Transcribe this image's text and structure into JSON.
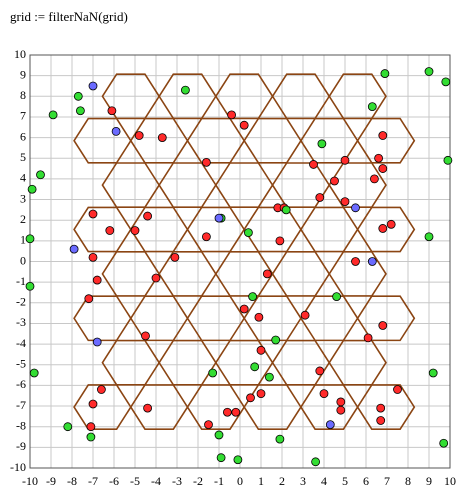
{
  "chart_data": {
    "type": "scatter",
    "title": "grid := filterNaN(grid)",
    "xlim": [
      -10,
      10
    ],
    "ylim": [
      -10,
      10
    ],
    "xticks": [
      -10,
      -9,
      -8,
      -7,
      -6,
      -5,
      -4,
      -3,
      -2,
      -1,
      0,
      1,
      2,
      3,
      4,
      5,
      6,
      7,
      8,
      9,
      10
    ],
    "yticks": [
      -10,
      -9,
      -8,
      -7,
      -6,
      -5,
      -4,
      -3,
      -2,
      -1,
      0,
      1,
      2,
      3,
      4,
      5,
      6,
      7,
      8,
      9,
      10
    ],
    "grid": true,
    "hex_color": "#8b4513",
    "hex_size": [
      1.35,
      1.07
    ],
    "hexagons": [
      {
        "y": 8.0,
        "x": [
          -5.2,
          -2.5,
          0.2,
          2.9,
          5.6
        ]
      },
      {
        "y": 5.85,
        "x": [
          -6.55,
          -3.85,
          -1.15,
          1.55,
          4.25,
          6.95
        ]
      },
      {
        "y": 3.7,
        "x": [
          -5.2,
          -2.5,
          0.2,
          2.9,
          5.6
        ]
      },
      {
        "y": 1.55,
        "x": [
          -6.55,
          -3.85,
          -1.15,
          1.55,
          4.25,
          6.95
        ]
      },
      {
        "y": -0.6,
        "x": [
          -5.2,
          -2.5,
          0.2,
          2.9,
          5.6
        ]
      },
      {
        "y": -2.75,
        "x": [
          -6.55,
          -3.85,
          -1.15,
          1.55,
          4.25,
          6.95
        ]
      },
      {
        "y": -4.9,
        "x": [
          -5.2,
          -2.5,
          0.2,
          2.9,
          5.6
        ]
      },
      {
        "y": -7.05,
        "x": [
          -6.55,
          -3.85,
          -1.15,
          1.55,
          4.25,
          6.95
        ]
      }
    ],
    "series": [
      {
        "color": "#ff2a2a",
        "x": [
          -6.1,
          -0.4,
          0.2,
          -4.8,
          -3.7,
          6.8,
          -1.6,
          3.5,
          5.0,
          6.6,
          6.8,
          6.4,
          4.5,
          3.8,
          5.0,
          1.8,
          2.1,
          -7.0,
          -4.4,
          -6.2,
          -5.0,
          -1.6,
          1.9,
          6.8,
          7.2,
          -7.0,
          -3.1,
          5.5,
          -6.8,
          -4.0,
          1.3,
          -7.2,
          0.2,
          0.9,
          3.1,
          6.8,
          -4.5,
          6.1,
          1.0,
          3.8,
          -6.6,
          -4.4,
          7.5,
          4.0,
          4.8,
          4.8,
          6.7,
          6.7,
          -7.0,
          -7.1,
          -1.5,
          -0.6,
          -0.2,
          0.5,
          1.0
        ],
        "y": [
          7.3,
          7.1,
          6.6,
          6.1,
          6.0,
          6.1,
          4.8,
          4.7,
          4.9,
          5.0,
          4.5,
          4.0,
          3.9,
          3.1,
          2.9,
          2.6,
          2.6,
          2.3,
          2.2,
          1.5,
          1.5,
          1.2,
          1.0,
          1.6,
          1.8,
          0.2,
          0.2,
          0.0,
          -0.9,
          -0.8,
          -0.6,
          -1.8,
          -2.3,
          -2.7,
          -2.6,
          -3.1,
          -3.6,
          -3.7,
          -4.3,
          -5.3,
          -6.2,
          -7.1,
          -6.2,
          -6.4,
          -6.8,
          -7.2,
          -7.1,
          -7.7,
          -6.9,
          -8.0,
          -7.9,
          -7.3,
          -7.3,
          -6.6,
          -6.4
        ]
      },
      {
        "color": "#33dd33",
        "x": [
          -2.6,
          -7.7,
          -7.6,
          -8.9,
          6.3,
          6.9,
          9.0,
          9.8,
          3.9,
          9.9,
          -9.5,
          -9.9,
          2.2,
          -0.9,
          0.4,
          -10,
          9.0,
          -10,
          0.6,
          4.6,
          1.7,
          -9.8,
          -1.3,
          0.7,
          1.4,
          -8.2,
          -7.1,
          -1.0,
          -0.9,
          -0.1,
          1.9,
          3.6,
          9.7,
          9.2
        ],
        "y": [
          8.3,
          8.0,
          7.3,
          7.1,
          7.5,
          9.1,
          9.2,
          8.7,
          5.7,
          4.9,
          4.2,
          3.5,
          2.5,
          2.1,
          1.4,
          1.1,
          1.2,
          -1.2,
          -1.7,
          -1.7,
          -3.8,
          -5.4,
          -5.4,
          -5.1,
          -5.6,
          -8.0,
          -8.5,
          -8.4,
          -9.5,
          -9.6,
          -8.6,
          -9.7,
          -8.8,
          -5.4
        ]
      },
      {
        "color": "#6b6bff",
        "x": [
          -7.0,
          -5.9,
          -1.0,
          5.5,
          -7.9,
          6.3,
          -6.8,
          4.3
        ],
        "y": [
          8.5,
          6.3,
          2.1,
          2.6,
          0.6,
          0.0,
          -3.9,
          -7.9
        ]
      }
    ]
  }
}
